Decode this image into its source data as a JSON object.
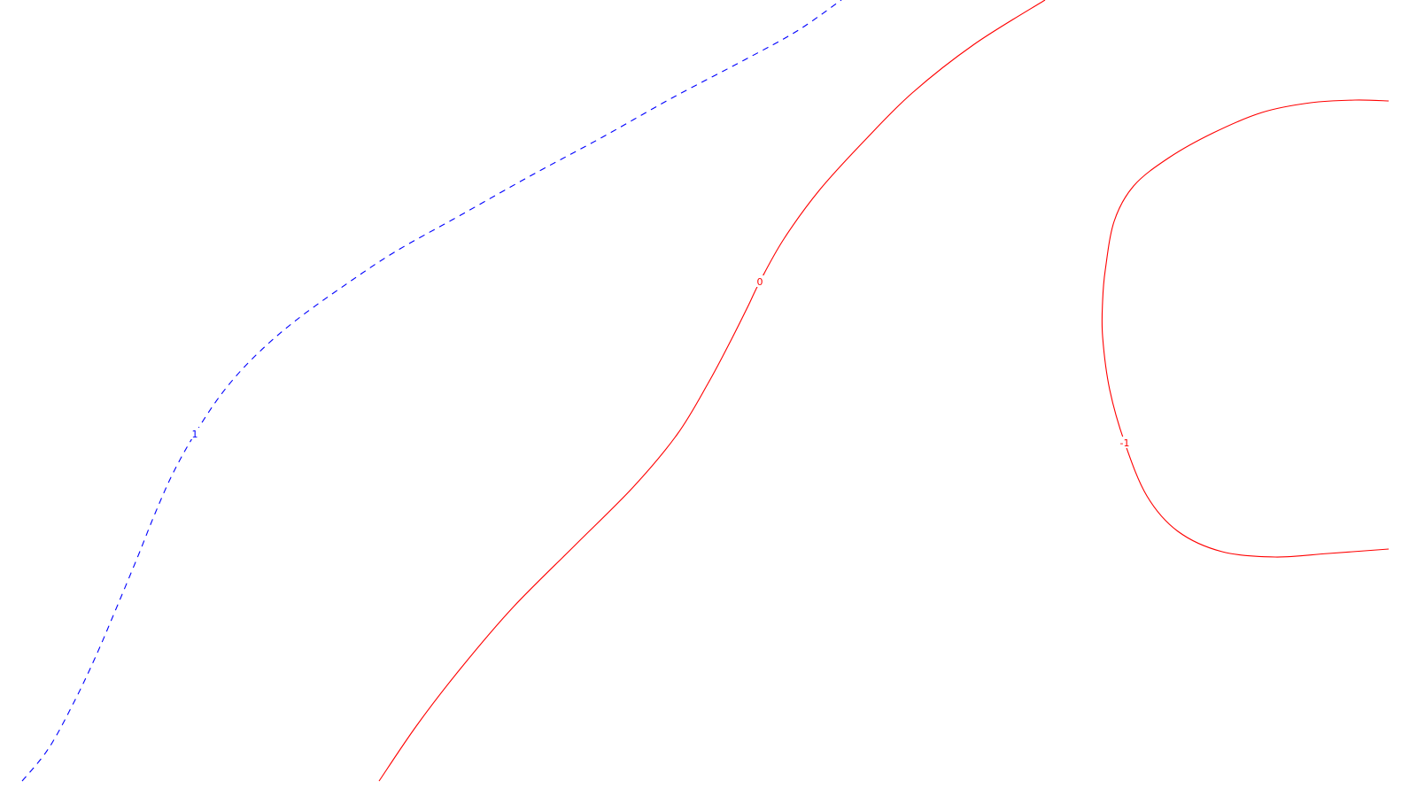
{
  "chart_data": {
    "type": "contour",
    "title": "",
    "xlabel": "",
    "ylabel": "",
    "grid": false,
    "legend": "none",
    "contours": [
      {
        "level_label": "1",
        "color": "#0000ff",
        "dashed": true,
        "closed": false,
        "label_index": 8,
        "path": [
          [
            25,
            882
          ],
          [
            55,
            845
          ],
          [
            85,
            790
          ],
          [
            110,
            737
          ],
          [
            130,
            690
          ],
          [
            155,
            630
          ],
          [
            175,
            580
          ],
          [
            195,
            535
          ],
          [
            220,
            490
          ],
          [
            250,
            445
          ],
          [
            285,
            405
          ],
          [
            330,
            365
          ],
          [
            385,
            325
          ],
          [
            445,
            285
          ],
          [
            520,
            243
          ],
          [
            600,
            198
          ],
          [
            680,
            155
          ],
          [
            760,
            110
          ],
          [
            840,
            68
          ],
          [
            900,
            35
          ],
          [
            950,
            0
          ]
        ]
      },
      {
        "level_label": "0",
        "color": "#ff0000",
        "dashed": false,
        "closed": false,
        "label_index": 10,
        "path": [
          [
            428,
            882
          ],
          [
            470,
            820
          ],
          [
            520,
            755
          ],
          [
            580,
            685
          ],
          [
            650,
            615
          ],
          [
            715,
            550
          ],
          [
            765,
            490
          ],
          [
            800,
            432
          ],
          [
            825,
            385
          ],
          [
            845,
            345
          ],
          [
            858,
            318
          ],
          [
            885,
            270
          ],
          [
            925,
            215
          ],
          [
            975,
            160
          ],
          [
            1030,
            105
          ],
          [
            1100,
            50
          ],
          [
            1180,
            0
          ]
        ]
      },
      {
        "level_label": "-1",
        "color": "#ff0000",
        "dashed": false,
        "closed": false,
        "label_index": 6,
        "path": [
          [
            1568,
            620
          ],
          [
            1500,
            625
          ],
          [
            1440,
            629
          ],
          [
            1380,
            623
          ],
          [
            1330,
            600
          ],
          [
            1295,
            560
          ],
          [
            1270,
            500
          ],
          [
            1253,
            440
          ],
          [
            1245,
            380
          ],
          [
            1245,
            340
          ],
          [
            1248,
            305
          ],
          [
            1258,
            250
          ],
          [
            1280,
            210
          ],
          [
            1320,
            178
          ],
          [
            1370,
            150
          ],
          [
            1425,
            127
          ],
          [
            1480,
            116
          ],
          [
            1530,
            113
          ],
          [
            1568,
            114
          ]
        ]
      }
    ]
  }
}
